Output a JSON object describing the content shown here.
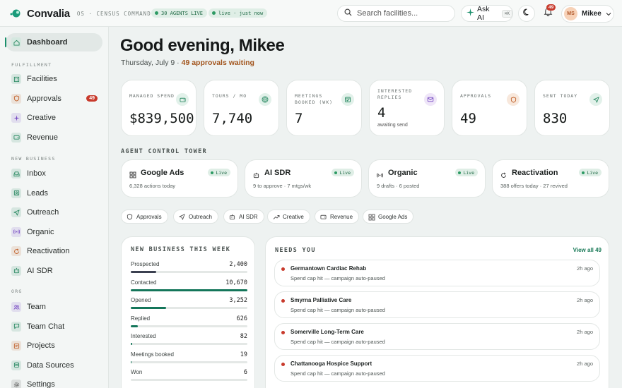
{
  "brand": {
    "name": "Convalia",
    "sub": "OS · CENSUS COMMAND",
    "agents_pill": "30 AGENTS LIVE",
    "live_pill": "live · just now"
  },
  "topbar": {
    "search_placeholder": "Search facilities...",
    "ask_ai": "Ask AI",
    "ask_ai_kbd": "⌘K",
    "bell_count": "49",
    "user_initials": "MS",
    "user_name": "Mikee"
  },
  "sidebar": {
    "dashboard": "Dashboard",
    "sections": {
      "fulfillment": "FULFILLMENT",
      "new_business": "NEW BUSINESS",
      "org": "ORG"
    },
    "fulfillment": [
      {
        "label": "Facilities",
        "icon": "building-icon",
        "color": "#2b8a63"
      },
      {
        "label": "Approvals",
        "icon": "shield-icon",
        "color": "#c1622c",
        "badge": "49"
      },
      {
        "label": "Creative",
        "icon": "sparkle-icon",
        "color": "#7a4fc4"
      },
      {
        "label": "Revenue",
        "icon": "wallet-icon",
        "color": "#2b8a63"
      }
    ],
    "new_business": [
      {
        "label": "Inbox",
        "icon": "inbox-icon",
        "color": "#2b8a63"
      },
      {
        "label": "Leads",
        "icon": "leads-icon",
        "color": "#2b8a63"
      },
      {
        "label": "Outreach",
        "icon": "send-icon",
        "color": "#2b8a63"
      },
      {
        "label": "Organic",
        "icon": "broadcast-icon",
        "color": "#7a4fc4"
      },
      {
        "label": "Reactivation",
        "icon": "refresh-icon",
        "color": "#c1622c"
      },
      {
        "label": "AI SDR",
        "icon": "bot-icon",
        "color": "#2b8a63"
      }
    ],
    "org": [
      {
        "label": "Team",
        "icon": "team-icon",
        "color": "#7a4fc4"
      },
      {
        "label": "Team Chat",
        "icon": "chat-icon",
        "color": "#2b8a63"
      },
      {
        "label": "Projects",
        "icon": "folder-icon",
        "color": "#c1622c"
      },
      {
        "label": "Data Sources",
        "icon": "database-icon",
        "color": "#2b8a63"
      },
      {
        "label": "Settings",
        "icon": "gear-icon",
        "color": "#555"
      }
    ]
  },
  "header": {
    "greeting": "Good evening, Mikee",
    "date": "Thursday, July 9",
    "sep": " · ",
    "approvals_waiting": "49 approvals waiting"
  },
  "kpis": [
    {
      "label": "MANAGED SPEND",
      "value": "$839,500",
      "icon": "wallet-icon",
      "bg": "#e2f1ea",
      "fg": "#2b8a63"
    },
    {
      "label": "TOURS / MO",
      "value": "7,740",
      "icon": "target-icon",
      "bg": "#e2f1ea",
      "fg": "#2b8a63"
    },
    {
      "label": "MEETINGS BOOKED (WK)",
      "value": "7",
      "icon": "calendar-icon",
      "bg": "#e2f1ea",
      "fg": "#2b8a63"
    },
    {
      "label": "INTERESTED REPLIES",
      "value": "4",
      "sub": "awaiting send",
      "icon": "mail-icon",
      "bg": "#efe6f8",
      "fg": "#7a4fc4"
    },
    {
      "label": "APPROVALS",
      "value": "49",
      "icon": "shield-icon",
      "bg": "#f8e8dc",
      "fg": "#c1622c"
    },
    {
      "label": "SENT TODAY",
      "value": "830",
      "icon": "send-icon",
      "bg": "#e2f1ea",
      "fg": "#2b8a63"
    }
  ],
  "control_tower": {
    "title": "AGENT CONTROL TOWER",
    "live": "Live",
    "agents": [
      {
        "name": "Google Ads",
        "desc": "6,328 actions today",
        "icon": "grid-icon"
      },
      {
        "name": "AI SDR",
        "desc": "9 to approve · 7 mtgs/wk",
        "icon": "bot-icon"
      },
      {
        "name": "Organic",
        "desc": "9 drafts · 6 posted",
        "icon": "broadcast-icon"
      },
      {
        "name": "Reactivation",
        "desc": "388 offers today · 27 revived",
        "icon": "refresh-icon"
      }
    ]
  },
  "chips": [
    {
      "label": "Approvals",
      "icon": "shield-icon"
    },
    {
      "label": "Outreach",
      "icon": "send-icon"
    },
    {
      "label": "AI SDR",
      "icon": "bot-icon"
    },
    {
      "label": "Creative",
      "icon": "trend-icon"
    },
    {
      "label": "Revenue",
      "icon": "wallet-icon"
    },
    {
      "label": "Google Ads",
      "icon": "grid-icon"
    }
  ],
  "funnel": {
    "title": "NEW BUSINESS THIS WEEK",
    "rows": [
      {
        "label": "Prospected",
        "value": "2,400",
        "fraction": 0.22,
        "color": "#3b4050"
      },
      {
        "label": "Contacted",
        "value": "10,670",
        "fraction": 1.0,
        "color": "#14765a"
      },
      {
        "label": "Opened",
        "value": "3,252",
        "fraction": 0.3,
        "color": "#14765a"
      },
      {
        "label": "Replied",
        "value": "626",
        "fraction": 0.06,
        "color": "#14765a"
      },
      {
        "label": "Interested",
        "value": "82",
        "fraction": 0.01,
        "color": "#14765a"
      },
      {
        "label": "Meetings booked",
        "value": "19",
        "fraction": 0.005,
        "color": "#14765a"
      },
      {
        "label": "Won",
        "value": "6",
        "fraction": 0.0,
        "color": "#14765a"
      }
    ]
  },
  "needs_you": {
    "title": "NEEDS YOU",
    "view_all": "View all 49",
    "items": [
      {
        "title": "Germantown Cardiac Rehab",
        "desc": "Spend cap hit — campaign auto-paused",
        "time": "2h ago"
      },
      {
        "title": "Smyrna Palliative Care",
        "desc": "Spend cap hit — campaign auto-paused",
        "time": "2h ago"
      },
      {
        "title": "Somerville Long-Term Care",
        "desc": "Spend cap hit — campaign auto-paused",
        "time": "2h ago"
      },
      {
        "title": "Chattanooga Hospice Support",
        "desc": "Spend cap hit — campaign auto-paused",
        "time": "2h ago"
      }
    ]
  }
}
